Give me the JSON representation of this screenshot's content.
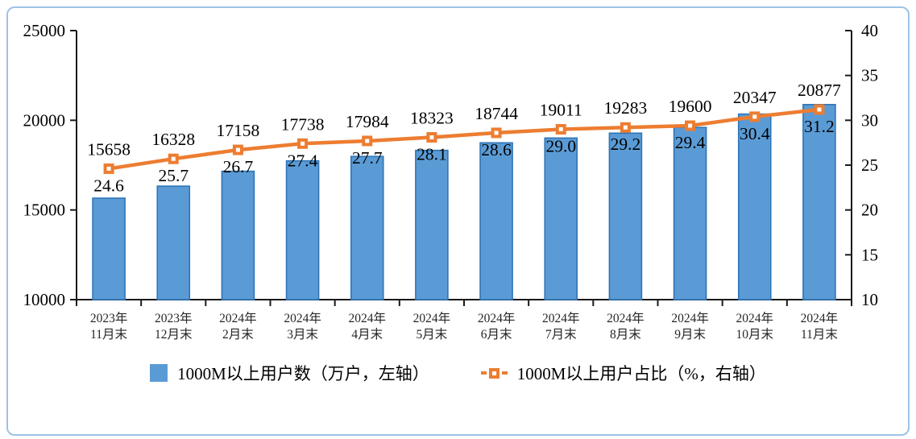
{
  "chart_data": {
    "type": "bar",
    "subtype": "bar-line-combo",
    "title": "",
    "categories": [
      "2023年11月末",
      "2023年12月末",
      "2024年2月末",
      "2024年3月末",
      "2024年4月末",
      "2024年5月末",
      "2024年6月末",
      "2024年7月末",
      "2024年8月末",
      "2024年9月末",
      "2024年10月末",
      "2024年11月末"
    ],
    "series": [
      {
        "name": "1000M以上用户数（万户，左轴）",
        "type": "bar",
        "axis": "left",
        "color": "#5B9BD5",
        "border_color": "#2E75B6",
        "values": [
          15658,
          16328,
          17158,
          17738,
          17984,
          18323,
          18744,
          19011,
          19283,
          19600,
          20347,
          20877
        ]
      },
      {
        "name": "1000M以上用户占比（%，右轴）",
        "type": "line",
        "axis": "right",
        "color": "#ED7D31",
        "marker": "square",
        "values": [
          24.6,
          25.7,
          26.7,
          27.4,
          27.7,
          28.1,
          28.6,
          29.0,
          29.2,
          29.4,
          30.4,
          31.2
        ]
      }
    ],
    "left_axis": {
      "min": 10000,
      "max": 25000,
      "ticks": [
        25000,
        20000,
        15000,
        10000
      ]
    },
    "right_axis": {
      "min": 10,
      "max": 40,
      "ticks": [
        40,
        35,
        30,
        25,
        20,
        15,
        10
      ]
    },
    "grid": false,
    "legend_position": "bottom",
    "data_labels": true
  },
  "colors": {
    "frame_border": "#9DC3E6",
    "axis_line": "#1a1a1a",
    "label_text": "#000000",
    "category_text": "#262626"
  }
}
